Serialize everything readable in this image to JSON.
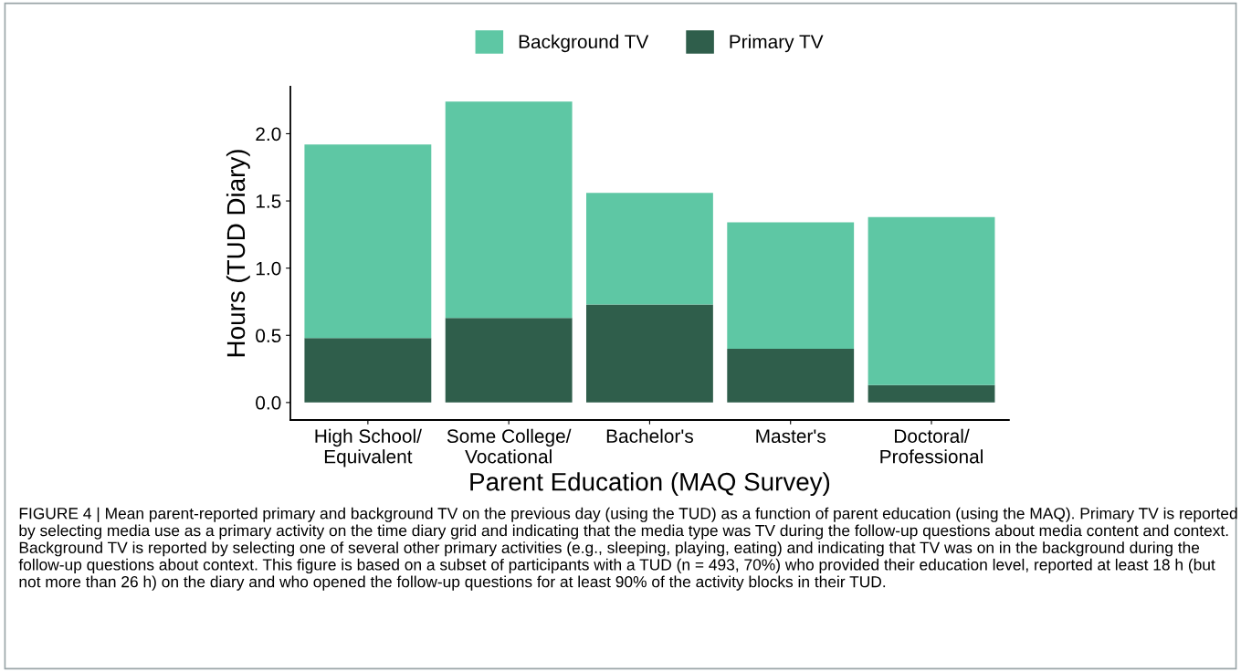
{
  "chart_data": {
    "type": "bar",
    "stacked": true,
    "categories": [
      "High School/\nEquivalent",
      "Some College/\nVocational",
      "Bachelor's",
      "Master's",
      "Doctoral/\nProfessional"
    ],
    "series": [
      {
        "name": "Primary TV",
        "color": "#2f5e4b",
        "values": [
          0.48,
          0.63,
          0.73,
          0.4,
          0.13
        ]
      },
      {
        "name": "Background TV",
        "color": "#5ec7a4",
        "values": [
          1.44,
          1.61,
          0.83,
          0.94,
          1.25
        ]
      }
    ],
    "xlabel": "Parent Education (MAQ Survey)",
    "ylabel": "Hours (TUD Diary)",
    "ylim": [
      -0.13,
      2.35
    ],
    "yticks": [
      {
        "value": 0,
        "label": "0.0"
      },
      {
        "value": 0.5,
        "label": "0.5"
      },
      {
        "value": 1,
        "label": "1.0"
      },
      {
        "value": 1.5,
        "label": "1.5"
      },
      {
        "value": 2,
        "label": "2.0"
      }
    ],
    "legend": "top",
    "grid": false,
    "annotations": [
      "FIGURE 4 | Mean parent-reported primary and background TV on the previous day (using the TUD) as a function of parent education (using the MAQ). Primary TV is reported by selecting media use as a primary activity on the time diary grid and indicating that the media type was TV during the follow-up questions about media content and context. Background TV is reported by selecting one of several other primary activities (e.g., sleeping, playing, eating) and indicating that TV was on in the background during the follow-up questions about context. This figure is based on a subset of participants with a TUD (n = 493, 70%) who provided their education level, reported at least 18 h (but not more than 26 h) on the diary and who opened the follow-up questions for at least 90% of the activity blocks in their TUD."
    ]
  }
}
